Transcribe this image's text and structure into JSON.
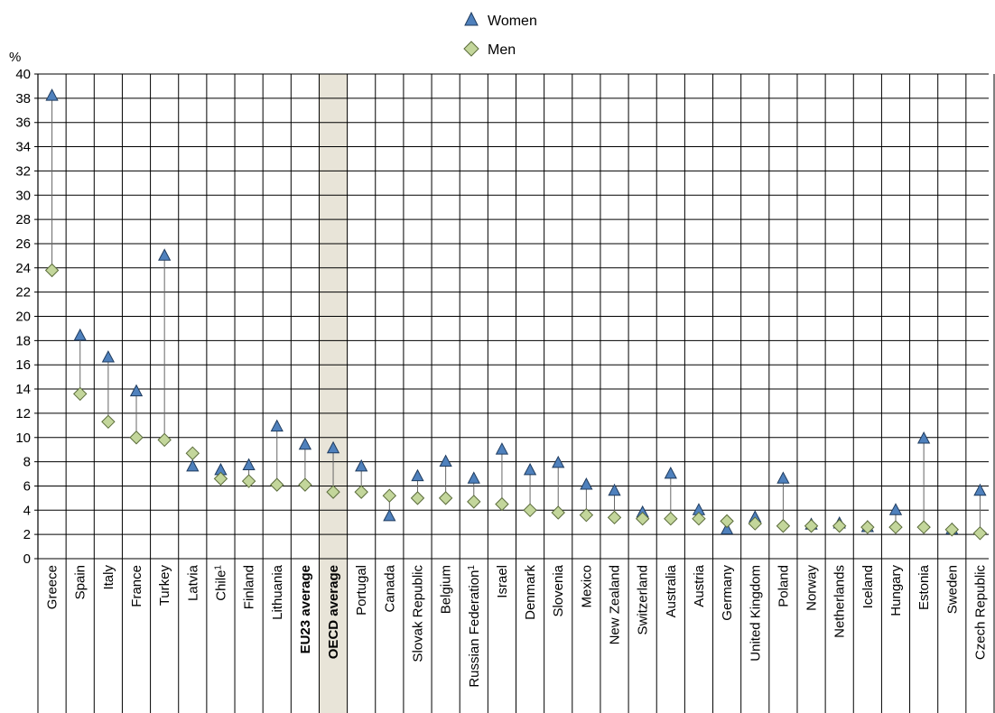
{
  "chart_data": {
    "type": "scatter",
    "ylabel": "%",
    "ylim": [
      0,
      40
    ],
    "ytick_step": 2,
    "grid": true,
    "legend_position": "top-center",
    "highlight_category": "OECD average",
    "bold_categories": [
      "EU23 average",
      "OECD average"
    ],
    "categories": [
      {
        "name": "Greece",
        "sup": ""
      },
      {
        "name": "Spain",
        "sup": ""
      },
      {
        "name": "Italy",
        "sup": ""
      },
      {
        "name": "France",
        "sup": ""
      },
      {
        "name": "Turkey",
        "sup": ""
      },
      {
        "name": "Latvia",
        "sup": ""
      },
      {
        "name": "Chile",
        "sup": "1"
      },
      {
        "name": "Finland",
        "sup": ""
      },
      {
        "name": "Lithuania",
        "sup": ""
      },
      {
        "name": "EU23 average",
        "sup": ""
      },
      {
        "name": "OECD average",
        "sup": ""
      },
      {
        "name": "Portugal",
        "sup": ""
      },
      {
        "name": "Canada",
        "sup": ""
      },
      {
        "name": "Slovak Republic",
        "sup": ""
      },
      {
        "name": "Belgium",
        "sup": ""
      },
      {
        "name": "Russian Federation",
        "sup": "1"
      },
      {
        "name": "Israel",
        "sup": ""
      },
      {
        "name": "Denmark",
        "sup": ""
      },
      {
        "name": "Slovenia",
        "sup": ""
      },
      {
        "name": "Mexico",
        "sup": ""
      },
      {
        "name": "New Zealand",
        "sup": ""
      },
      {
        "name": "Switzerland",
        "sup": ""
      },
      {
        "name": "Australia",
        "sup": ""
      },
      {
        "name": "Austria",
        "sup": ""
      },
      {
        "name": "Germany",
        "sup": ""
      },
      {
        "name": "United Kingdom",
        "sup": ""
      },
      {
        "name": "Poland",
        "sup": ""
      },
      {
        "name": "Norway",
        "sup": ""
      },
      {
        "name": "Netherlands",
        "sup": ""
      },
      {
        "name": "Iceland",
        "sup": ""
      },
      {
        "name": "Hungary",
        "sup": ""
      },
      {
        "name": "Estonia",
        "sup": ""
      },
      {
        "name": "Sweden",
        "sup": ""
      },
      {
        "name": "Czech Republic",
        "sup": ""
      }
    ],
    "series": [
      {
        "name": "Women",
        "marker": "triangle",
        "color": "#4f81bd",
        "values": [
          38.2,
          18.4,
          16.6,
          13.8,
          25.0,
          7.6,
          7.3,
          7.7,
          10.9,
          9.4,
          9.1,
          7.6,
          3.5,
          6.8,
          8.0,
          6.6,
          9.0,
          7.3,
          7.9,
          6.1,
          5.6,
          3.8,
          7.0,
          4.0,
          2.4,
          3.4,
          6.6,
          2.8,
          2.9,
          2.6,
          4.0,
          9.9,
          2.4,
          5.6
        ]
      },
      {
        "name": "Men",
        "marker": "diamond",
        "color": "#c3d69b",
        "values": [
          23.8,
          13.6,
          11.3,
          10.0,
          9.8,
          8.7,
          6.6,
          6.4,
          6.1,
          6.1,
          5.5,
          5.5,
          5.2,
          5.0,
          5.0,
          4.7,
          4.5,
          4.0,
          3.8,
          3.6,
          3.4,
          3.3,
          3.3,
          3.3,
          3.1,
          2.9,
          2.7,
          2.7,
          2.7,
          2.6,
          2.6,
          2.6,
          2.4,
          2.1
        ]
      }
    ]
  }
}
